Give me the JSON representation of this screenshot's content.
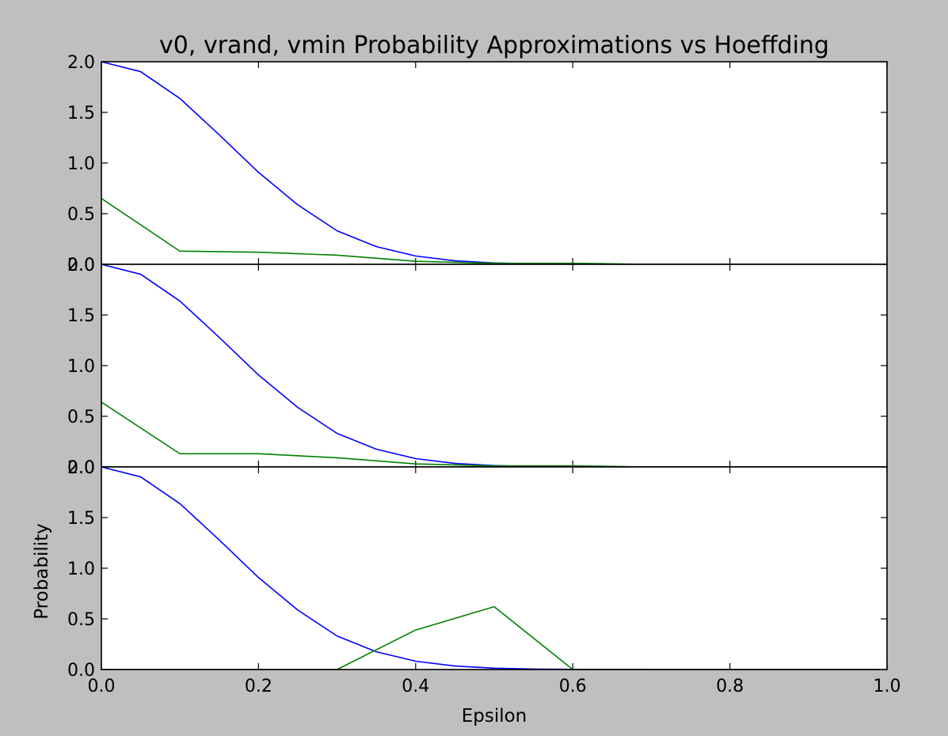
{
  "chart_data": {
    "title": "v0, vrand, vmin Probability Approximations vs Hoeffding",
    "xlabel": "Epsilon",
    "ylabel": "Probability",
    "xlim": [
      0.0,
      1.0
    ],
    "xticks": [
      "0.0",
      "0.2",
      "0.4",
      "0.6",
      "0.8",
      "1.0"
    ],
    "colors": {
      "hoeffding": "#0000ff",
      "approx": "#008000",
      "background": "#bfbfbf",
      "axes": "#ffffff"
    },
    "panels": [
      {
        "type": "line",
        "ylim": [
          0.0,
          2.0
        ],
        "yticks": [
          "0.0",
          "0.5",
          "1.0",
          "1.5",
          "2.0"
        ],
        "series": [
          {
            "color": "#0000ff",
            "x": [
              0.0,
              0.05,
              0.1,
              0.15,
              0.2,
              0.25,
              0.3,
              0.35,
              0.4,
              0.45,
              0.5,
              0.55,
              0.6,
              0.65,
              0.7,
              0.8,
              0.9,
              0.99
            ],
            "y": [
              2.0,
              1.902,
              1.637,
              1.279,
              0.908,
              0.587,
              0.331,
              0.175,
              0.082,
              0.035,
              0.013,
              0.0045,
              0.0015,
              0.0004,
              0.0001,
              0.0,
              0.0,
              0.0
            ]
          },
          {
            "color": "#008000",
            "x": [
              0.0,
              0.1,
              0.2,
              0.3,
              0.4,
              0.5,
              0.6,
              0.7,
              0.8,
              0.9,
              0.99
            ],
            "y": [
              0.65,
              0.13,
              0.12,
              0.09,
              0.03,
              0.01,
              0.01,
              0.0,
              0.0,
              0.0,
              0.0
            ]
          }
        ]
      },
      {
        "type": "line",
        "ylim": [
          0.0,
          2.0
        ],
        "yticks": [
          "0.0",
          "0.5",
          "1.0",
          "1.5",
          "2.0"
        ],
        "series": [
          {
            "color": "#0000ff",
            "x": [
              0.0,
              0.05,
              0.1,
              0.15,
              0.2,
              0.25,
              0.3,
              0.35,
              0.4,
              0.45,
              0.5,
              0.55,
              0.6,
              0.65,
              0.7,
              0.8,
              0.9,
              0.99
            ],
            "y": [
              2.0,
              1.902,
              1.637,
              1.279,
              0.908,
              0.587,
              0.331,
              0.175,
              0.082,
              0.035,
              0.013,
              0.0045,
              0.0015,
              0.0004,
              0.0001,
              0.0,
              0.0,
              0.0
            ]
          },
          {
            "color": "#008000",
            "x": [
              0.0,
              0.1,
              0.2,
              0.3,
              0.4,
              0.5,
              0.6,
              0.7,
              0.8,
              0.9,
              0.99
            ],
            "y": [
              0.64,
              0.13,
              0.13,
              0.09,
              0.03,
              0.01,
              0.01,
              0.0,
              0.0,
              0.0,
              0.0
            ]
          }
        ]
      },
      {
        "type": "line",
        "ylim": [
          0.0,
          2.0
        ],
        "yticks": [
          "0.0",
          "0.5",
          "1.0",
          "1.5",
          "2.0"
        ],
        "series": [
          {
            "color": "#0000ff",
            "x": [
              0.0,
              0.05,
              0.1,
              0.15,
              0.2,
              0.25,
              0.3,
              0.35,
              0.4,
              0.45,
              0.5,
              0.55,
              0.6,
              0.65,
              0.7,
              0.8,
              0.9,
              0.99
            ],
            "y": [
              2.0,
              1.902,
              1.637,
              1.279,
              0.908,
              0.587,
              0.331,
              0.175,
              0.082,
              0.035,
              0.013,
              0.0045,
              0.0015,
              0.0004,
              0.0001,
              0.0,
              0.0,
              0.0
            ]
          },
          {
            "color": "#008000",
            "x": [
              0.0,
              0.1,
              0.2,
              0.3,
              0.4,
              0.5,
              0.6,
              0.7,
              0.8,
              0.9,
              0.99
            ],
            "y": [
              0.0,
              0.0,
              0.0,
              0.0,
              0.39,
              0.62,
              0.0,
              0.0,
              0.0,
              0.0,
              0.0
            ]
          }
        ]
      }
    ]
  }
}
